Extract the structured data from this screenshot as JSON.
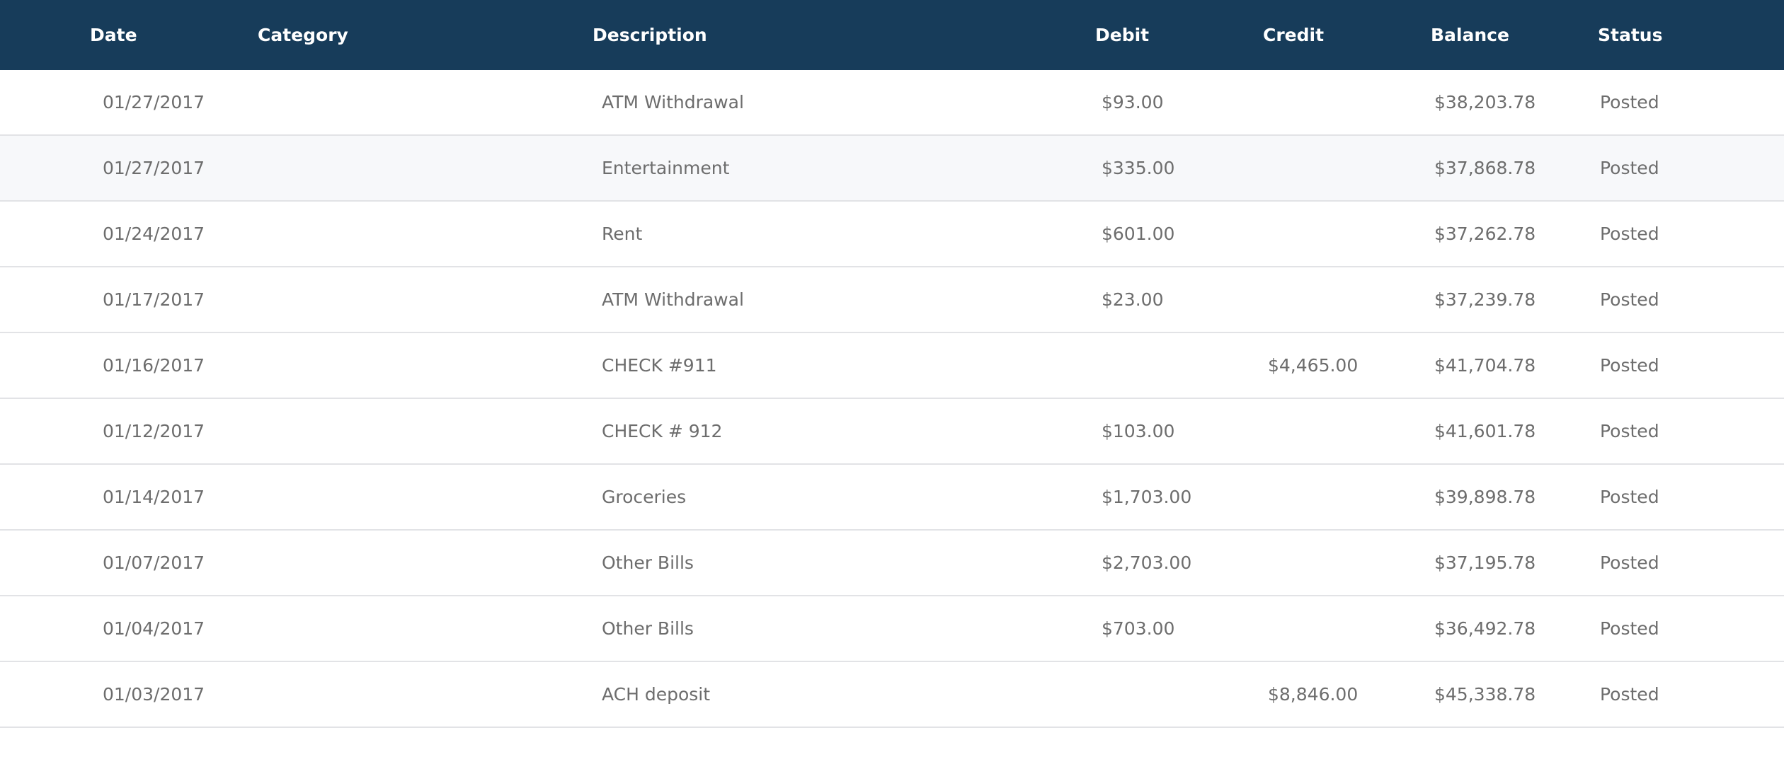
{
  "table": {
    "columns": {
      "date": "Date",
      "category": "Category",
      "description": "Description",
      "debit": "Debit",
      "credit": "Credit",
      "balance": "Balance",
      "status": "Status"
    },
    "rows": [
      {
        "date": "01/27/2017",
        "category": "",
        "description": "ATM Withdrawal",
        "debit": "$93.00",
        "credit": "",
        "balance": "$38,203.78",
        "status": "Posted"
      },
      {
        "date": "01/27/2017",
        "category": "",
        "description": "Entertainment",
        "debit": "$335.00",
        "credit": "",
        "balance": "$37,868.78",
        "status": "Posted"
      },
      {
        "date": "01/24/2017",
        "category": "",
        "description": "Rent",
        "debit": "$601.00",
        "credit": "",
        "balance": "$37,262.78",
        "status": "Posted"
      },
      {
        "date": "01/17/2017",
        "category": "",
        "description": "ATM Withdrawal",
        "debit": "$23.00",
        "credit": "",
        "balance": "$37,239.78",
        "status": "Posted"
      },
      {
        "date": "01/16/2017",
        "category": "",
        "description": "CHECK #911",
        "debit": "",
        "credit": "$4,465.00",
        "balance": "$41,704.78",
        "status": "Posted"
      },
      {
        "date": "01/12/2017",
        "category": "",
        "description": "CHECK # 912",
        "debit": "$103.00",
        "credit": "",
        "balance": "$41,601.78",
        "status": "Posted"
      },
      {
        "date": "01/14/2017",
        "category": "",
        "description": "Groceries",
        "debit": "$1,703.00",
        "credit": "",
        "balance": "$39,898.78",
        "status": "Posted"
      },
      {
        "date": "01/07/2017",
        "category": "",
        "description": "Other Bills",
        "debit": "$2,703.00",
        "credit": "",
        "balance": "$37,195.78",
        "status": "Posted"
      },
      {
        "date": "01/04/2017",
        "category": "",
        "description": "Other Bills",
        "debit": "$703.00",
        "credit": "",
        "balance": "$36,492.78",
        "status": "Posted"
      },
      {
        "date": "01/03/2017",
        "category": "",
        "description": "ACH deposit",
        "debit": "",
        "credit": "$8,846.00",
        "balance": "$45,338.78",
        "status": "Posted"
      }
    ]
  },
  "colors": {
    "header_bg": "#173c5a",
    "header_text": "#ffffff",
    "cell_text": "#6d6d6d",
    "alt_row_bg": "#f7f8fa",
    "row_divider": "#e2e3e6"
  }
}
